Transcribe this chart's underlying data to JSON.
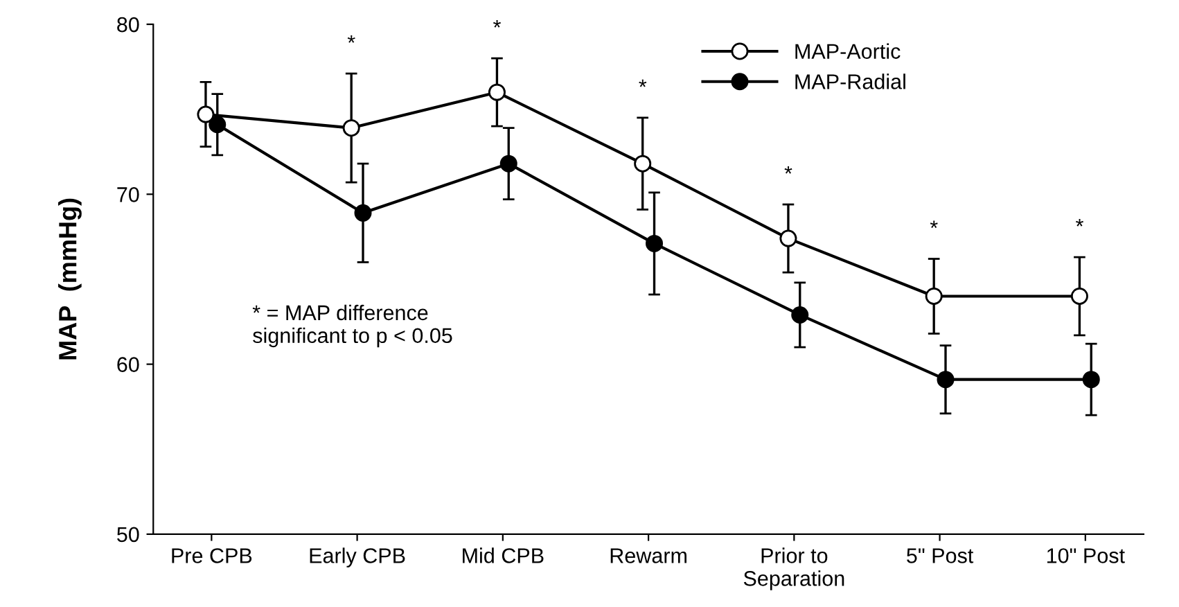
{
  "chart_data": {
    "type": "line",
    "ylabel": "MAP  (mmHg)",
    "categories": [
      "Pre CPB",
      "Early CPB",
      "Mid CPB",
      "Rewarm",
      "Prior to\nSeparation",
      "5\" Post",
      "10\" Post"
    ],
    "series": [
      {
        "name": "MAP-Aortic",
        "color": "#000000",
        "values": [
          74.7,
          73.9,
          76.0,
          71.8,
          67.4,
          64.0,
          64.0
        ],
        "errors": [
          1.9,
          3.2,
          2.0,
          2.7,
          2.0,
          2.2,
          2.3
        ]
      },
      {
        "name": "MAP-Radial",
        "color": "#000000",
        "values": [
          74.1,
          68.9,
          71.8,
          67.1,
          62.9,
          59.1,
          59.1
        ],
        "errors": [
          1.8,
          2.9,
          2.1,
          3.0,
          1.9,
          2.0,
          2.1
        ]
      }
    ],
    "ylim": [
      50,
      80
    ],
    "yticks": [
      50,
      60,
      70,
      80
    ],
    "marker": "circle",
    "line_style": "solid",
    "legend": "top right",
    "grid": false,
    "annotations": [
      "*",
      "*",
      "*",
      "*",
      "*",
      "*",
      "* = MAP difference\nsignificant to p < 0.05"
    ]
  }
}
